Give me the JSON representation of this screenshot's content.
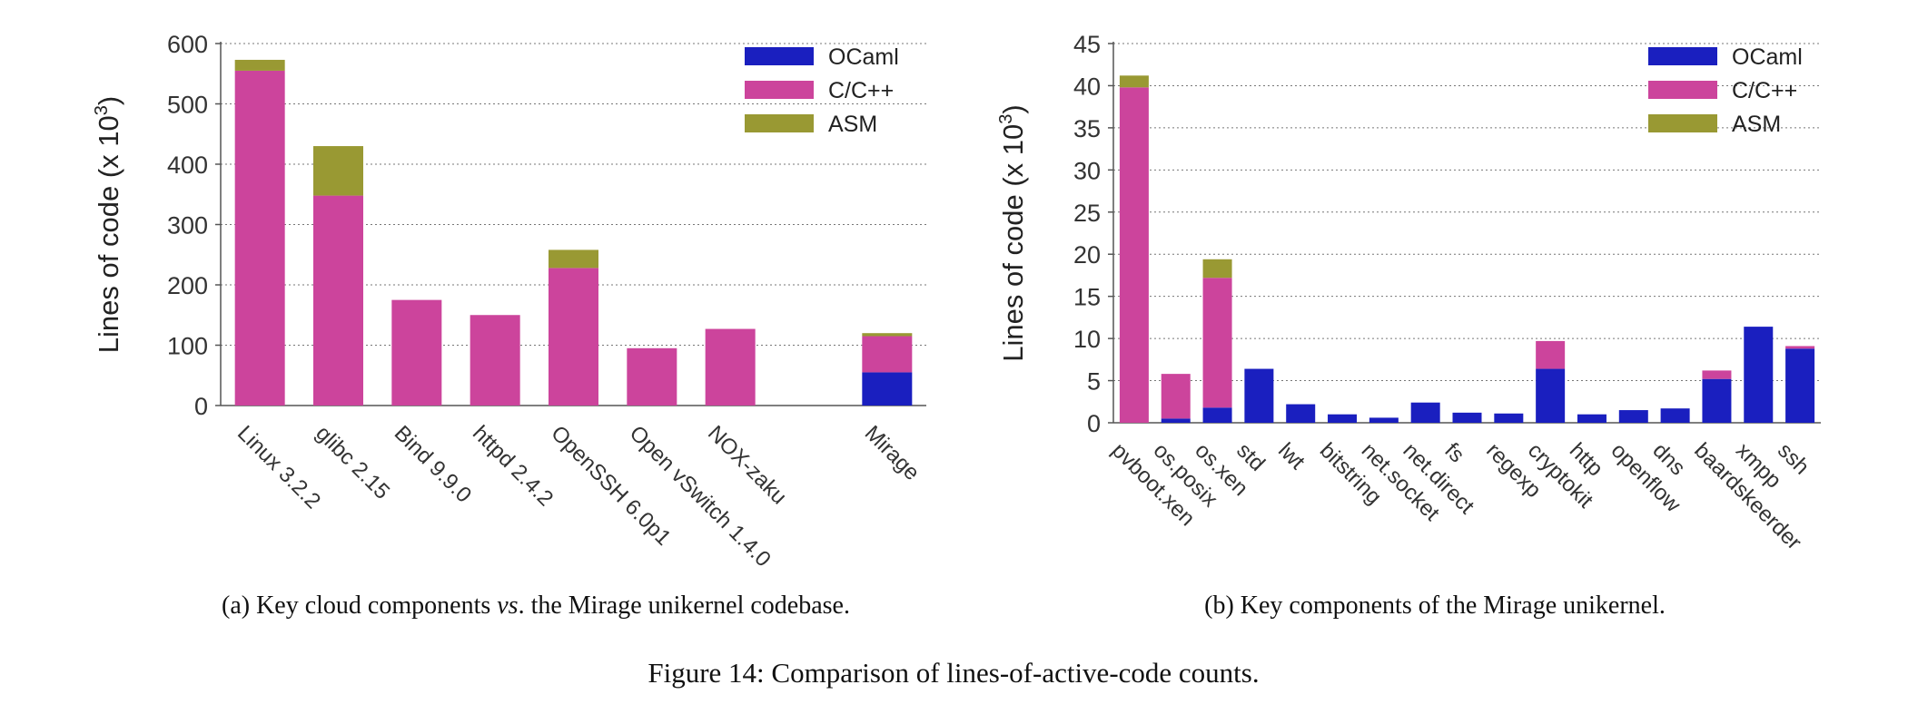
{
  "figure_caption": "Figure 14: Comparison of lines-of-active-code counts.",
  "colors": {
    "OCaml": "#1a1fbf",
    "C/C++": "#cc449c",
    "ASM": "#999933"
  },
  "chart_data": [
    {
      "type": "bar",
      "stacked": true,
      "caption_prefix": "(a) Key cloud components ",
      "caption_italic": "vs",
      "caption_suffix": ". the Mirage unikernel codebase.",
      "ylabel": "Lines of code (x 10",
      "ylabel_exp": "3",
      "ylabel_close": ")",
      "ylim": [
        0,
        600
      ],
      "yticks": [
        0,
        100,
        200,
        300,
        400,
        500,
        600
      ],
      "grid": true,
      "legend_position": "top-right",
      "legend": [
        "OCaml",
        "C/C++",
        "ASM"
      ],
      "categories": [
        "Linux 3.2.2",
        "glibc 2.15",
        "Bind 9.9.0",
        "httpd 2.4.2",
        "OpenSSH 6.0p1",
        "Open vSwitch 1.4.0",
        "NOX-zaku",
        "",
        "Mirage"
      ],
      "series": [
        {
          "name": "OCaml",
          "values": [
            0,
            0,
            0,
            0,
            0,
            0,
            0,
            0,
            55
          ]
        },
        {
          "name": "C/C++",
          "values": [
            555,
            348,
            175,
            150,
            228,
            95,
            127,
            0,
            60
          ]
        },
        {
          "name": "ASM",
          "values": [
            18,
            82,
            0,
            0,
            30,
            0,
            0,
            0,
            5
          ]
        }
      ]
    },
    {
      "type": "bar",
      "stacked": true,
      "caption_prefix": "(b) Key components of the Mirage unikernel.",
      "caption_italic": "",
      "caption_suffix": "",
      "ylabel": "Lines of code (x 10",
      "ylabel_exp": "3",
      "ylabel_close": ")",
      "ylim": [
        0,
        45
      ],
      "yticks": [
        0,
        5,
        10,
        15,
        20,
        25,
        30,
        35,
        40,
        45
      ],
      "grid": true,
      "legend_position": "top-right",
      "legend": [
        "OCaml",
        "C/C++",
        "ASM"
      ],
      "categories": [
        "pvboot.xen",
        "os.posix",
        "os.xen",
        "std",
        "lwt",
        "bitstring",
        "net.socket",
        "net.direct",
        "fs",
        "regexp",
        "cryptokit",
        "http",
        "openflow",
        "dns",
        "baardskeerder",
        "xmpp",
        "ssh"
      ],
      "series": [
        {
          "name": "OCaml",
          "values": [
            0,
            0.5,
            1.8,
            6.4,
            2.2,
            1.0,
            0.6,
            2.4,
            1.2,
            1.1,
            6.4,
            1.0,
            1.5,
            1.7,
            5.2,
            11.4,
            8.8
          ]
        },
        {
          "name": "C/C++",
          "values": [
            39.8,
            5.3,
            15.4,
            0,
            0,
            0,
            0,
            0,
            0,
            0,
            3.3,
            0,
            0,
            0,
            1.0,
            0,
            0.3
          ]
        },
        {
          "name": "ASM",
          "values": [
            1.4,
            0,
            2.2,
            0,
            0,
            0,
            0,
            0,
            0,
            0,
            0,
            0,
            0,
            0,
            0,
            0,
            0
          ]
        }
      ]
    }
  ]
}
